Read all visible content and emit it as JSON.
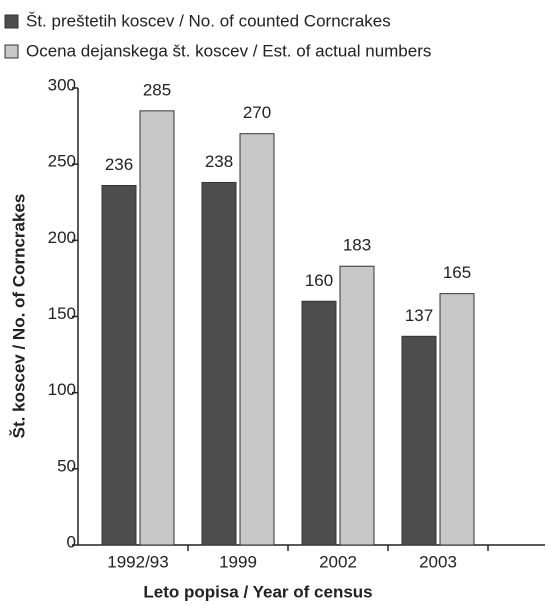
{
  "chart_data": {
    "type": "bar",
    "categories": [
      "1992/93",
      "1999",
      "2002",
      "2003"
    ],
    "series": [
      {
        "name": "Št. preštetih koscev / No. of counted Corncrakes",
        "color": "#4d4d4d",
        "values": [
          236,
          238,
          160,
          137
        ]
      },
      {
        "name": "Ocena dejanskega št. koscev / Est. of actual numbers",
        "color": "#c8c8c8",
        "values": [
          285,
          270,
          183,
          165
        ]
      }
    ],
    "xlabel": "Leto popisa / Year of census",
    "ylabel": "Št. koscev / No. of Corncrakes",
    "ylim": [
      0,
      300
    ],
    "yticks": [
      0,
      50,
      100,
      150,
      200,
      250,
      300
    ],
    "legend": "top-left"
  }
}
